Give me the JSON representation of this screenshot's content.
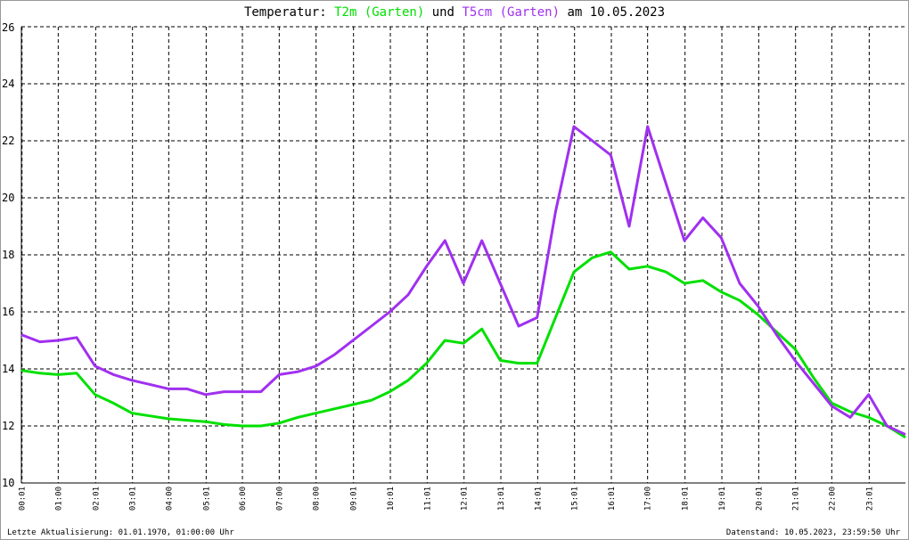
{
  "chart_data": {
    "type": "line",
    "title_parts": [
      "Temperatur:",
      "und",
      "am 10.05.2023"
    ],
    "footer_left": "Letzte Aktualisierung: 01.01.1970, 01:00:00 Uhr",
    "footer_right": "Datenstand: 10.05.2023, 23:59:50 Uhr",
    "x": [
      "00:00",
      "00:30",
      "01:00",
      "01:30",
      "02:00",
      "02:30",
      "03:00",
      "03:30",
      "04:00",
      "04:30",
      "05:00",
      "05:30",
      "06:00",
      "06:30",
      "07:00",
      "07:30",
      "08:00",
      "08:30",
      "09:00",
      "09:30",
      "10:00",
      "10:30",
      "11:00",
      "11:30",
      "12:00",
      "12:30",
      "13:00",
      "13:30",
      "14:00",
      "14:30",
      "15:00",
      "15:30",
      "16:00",
      "16:30",
      "17:00",
      "17:30",
      "18:00",
      "18:30",
      "19:00",
      "19:30",
      "20:00",
      "20:30",
      "21:00",
      "21:30",
      "22:00",
      "22:30",
      "23:00",
      "23:30",
      "24:00"
    ],
    "series": [
      {
        "name": "T2m (Garten)",
        "color": "#00e000",
        "values": [
          13.95,
          13.85,
          13.8,
          13.85,
          13.1,
          12.8,
          12.45,
          12.35,
          12.25,
          12.2,
          12.15,
          12.05,
          12.0,
          12.0,
          12.1,
          12.3,
          12.45,
          12.6,
          12.75,
          12.9,
          13.2,
          13.6,
          14.2,
          15.0,
          14.9,
          15.4,
          14.3,
          14.2,
          14.2,
          15.8,
          17.4,
          17.9,
          18.1,
          17.5,
          17.6,
          17.4,
          17.0,
          17.1,
          16.7,
          16.4,
          15.9,
          15.3,
          14.7,
          13.7,
          12.8,
          12.5,
          12.3,
          12.0,
          11.6
        ]
      },
      {
        "name": "T5cm (Garten)",
        "color": "#a030f0",
        "values": [
          15.2,
          14.95,
          15.0,
          15.1,
          14.1,
          13.8,
          13.6,
          13.45,
          13.3,
          13.3,
          13.1,
          13.2,
          13.2,
          13.2,
          13.8,
          13.9,
          14.1,
          14.5,
          15.0,
          15.5,
          16.0,
          16.6,
          17.6,
          18.5,
          17.0,
          18.5,
          17.0,
          15.5,
          15.8,
          19.5,
          22.5,
          22.0,
          21.5,
          19.0,
          22.5,
          20.5,
          18.5,
          19.3,
          18.6,
          17.0,
          16.2,
          15.2,
          14.3,
          13.5,
          12.7,
          12.3,
          13.1,
          12.0,
          11.7
        ]
      }
    ],
    "xlim": [
      "00:00",
      "24:00"
    ],
    "xticks": [
      "00:01",
      "01:00",
      "02:01",
      "03:01",
      "04:00",
      "05:01",
      "06:00",
      "07:00",
      "08:00",
      "09:01",
      "10:01",
      "11:01",
      "12:01",
      "13:01",
      "14:01",
      "15:01",
      "16:01",
      "17:00",
      "18:01",
      "19:01",
      "20:01",
      "21:01",
      "22:00",
      "23:01"
    ],
    "ylim": [
      10,
      26
    ],
    "yticks": [
      10,
      12,
      14,
      16,
      18,
      20,
      22,
      24,
      26
    ],
    "grid": true
  }
}
